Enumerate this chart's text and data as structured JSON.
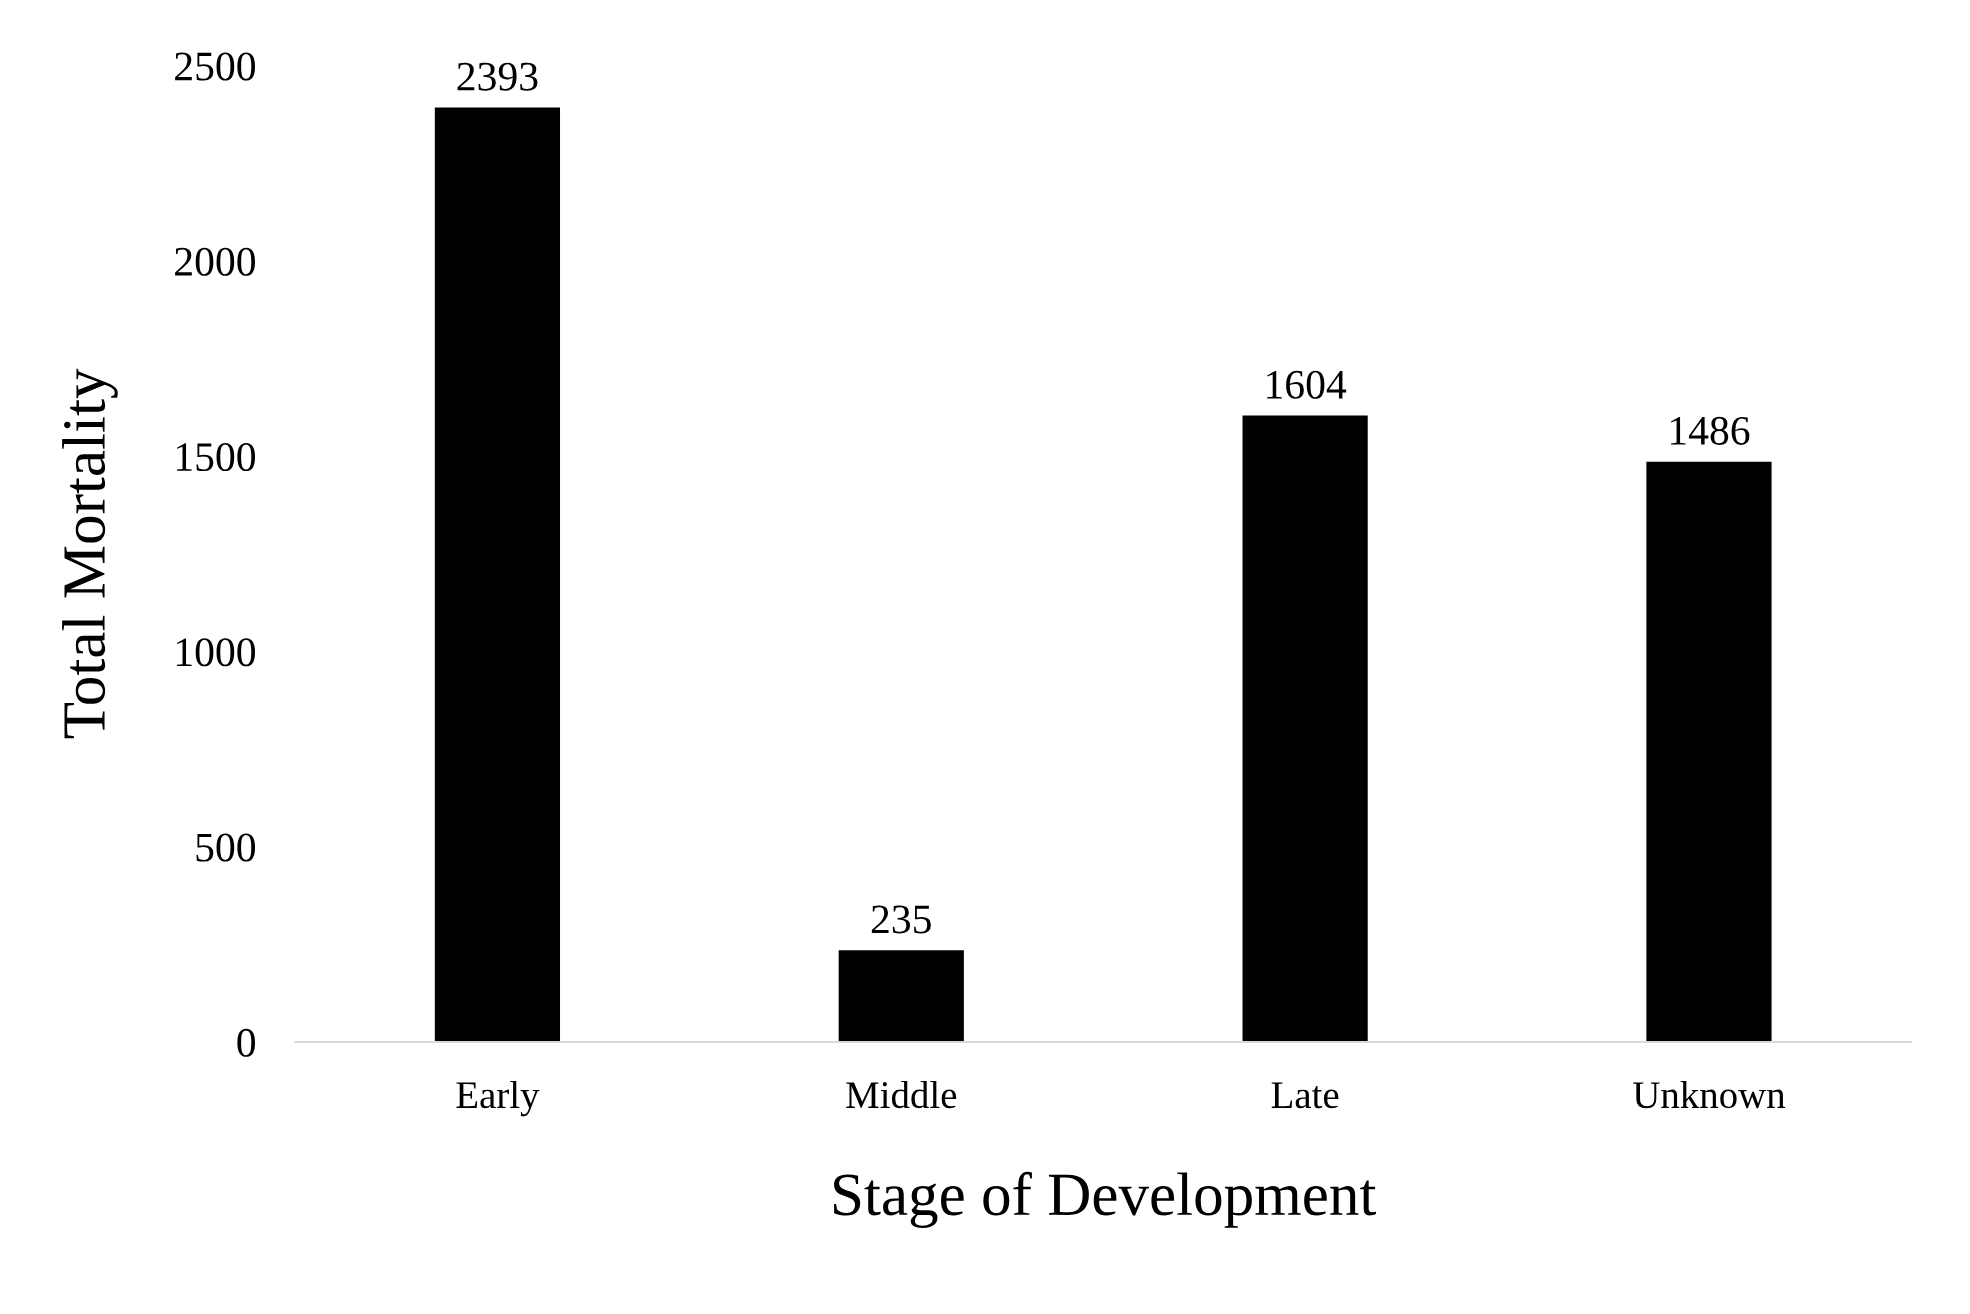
{
  "chart_data": {
    "type": "bar",
    "xlabel": "Stage of Development",
    "ylabel": "Total Mortality",
    "categories": [
      "Early",
      "Middle",
      "Late",
      "Unknown"
    ],
    "values": [
      2393,
      235,
      1604,
      1486
    ],
    "color": "#000000",
    "ylim": [
      0,
      2500
    ],
    "yticks": [
      0,
      500,
      1000,
      1500,
      2000,
      2500
    ],
    "grid": false,
    "data_labels": true
  }
}
